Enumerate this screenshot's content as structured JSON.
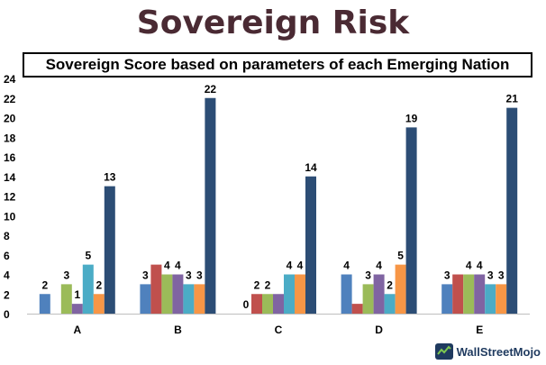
{
  "header": {
    "title": "Sovereign Risk"
  },
  "watermark": {
    "text": "WallStreetMojo"
  },
  "colors": {
    "series": [
      "#4f81bd",
      "#c0504d",
      "#9bbb59",
      "#8064a2",
      "#4bacc6",
      "#f79646",
      "#2c4d75"
    ]
  },
  "chart_data": {
    "type": "bar",
    "title": "Sovereign Score based on parameters of each Emerging Nation",
    "categories": [
      "A",
      "B",
      "C",
      "D",
      "E"
    ],
    "ylim": [
      0,
      24
    ],
    "yticks": [
      0,
      2,
      4,
      6,
      8,
      10,
      12,
      14,
      16,
      18,
      20,
      22,
      24
    ],
    "grid": false,
    "legend": "none",
    "series": [
      {
        "values": [
          2,
          3,
          0,
          4,
          3
        ]
      },
      {
        "values": [
          null,
          5,
          2,
          1,
          4
        ]
      },
      {
        "values": [
          3,
          4,
          2,
          3,
          4
        ]
      },
      {
        "values": [
          1,
          4,
          2,
          4,
          4
        ]
      },
      {
        "values": [
          5,
          3,
          4,
          2,
          3
        ]
      },
      {
        "values": [
          2,
          3,
          4,
          5,
          3
        ]
      },
      {
        "values": [
          13,
          22,
          14,
          19,
          21
        ]
      }
    ],
    "data_labels": [
      [
        "2",
        "3",
        "0",
        "4",
        "3"
      ],
      [
        "",
        "",
        "2",
        "",
        ""
      ],
      [
        "3",
        "4",
        "2",
        "3",
        "4"
      ],
      [
        "1",
        "4",
        "",
        "4",
        "4"
      ],
      [
        "5",
        "3",
        "4",
        "2",
        "3"
      ],
      [
        "2",
        "3",
        "4",
        "5",
        "3"
      ],
      [
        "13",
        "22",
        "14",
        "19",
        "21"
      ]
    ]
  }
}
